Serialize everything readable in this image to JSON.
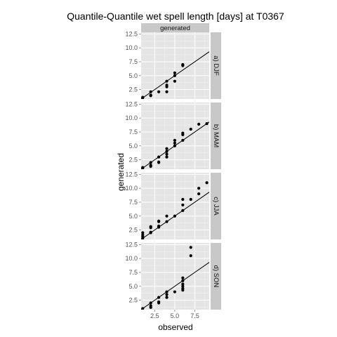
{
  "chart_data": {
    "type": "scatter",
    "title": "Quantile-Quantile wet spell length [days] at T0367",
    "xlabel": "observed",
    "ylabel": "generated",
    "column_strip": "generated",
    "xlim": [
      0.8,
      9.3
    ],
    "ylim": [
      0.8,
      12.8
    ],
    "x_ticks": [
      "2.5",
      "5.0",
      "7.5"
    ],
    "x_tick_values": [
      2.5,
      5.0,
      7.5
    ],
    "y_ticks": [
      "2.5",
      "5.0",
      "7.5",
      "10.0",
      "12.5"
    ],
    "y_tick_values": [
      2.5,
      5.0,
      7.5,
      10.0,
      12.5
    ],
    "reference_line": "y = x",
    "grid": true,
    "panels": [
      {
        "label": "a) DJF",
        "points": [
          [
            1,
            1
          ],
          [
            1,
            1.1
          ],
          [
            2,
            1.5
          ],
          [
            2,
            1.4
          ],
          [
            2,
            2.1
          ],
          [
            3,
            2.1
          ],
          [
            4,
            2.1
          ],
          [
            4,
            3
          ],
          [
            4,
            3.3
          ],
          [
            4,
            4
          ],
          [
            5,
            4
          ],
          [
            5,
            5
          ],
          [
            5,
            5.5
          ],
          [
            6,
            6.8
          ],
          [
            6,
            7
          ]
        ]
      },
      {
        "label": "b) MAM",
        "points": [
          [
            1,
            1
          ],
          [
            1,
            1.1
          ],
          [
            2,
            1.3
          ],
          [
            2,
            1.5
          ],
          [
            2,
            2
          ],
          [
            3,
            2
          ],
          [
            3,
            2.1
          ],
          [
            3,
            3
          ],
          [
            4,
            3
          ],
          [
            4,
            3.5
          ],
          [
            4,
            4
          ],
          [
            4,
            4.5
          ],
          [
            5,
            5
          ],
          [
            5,
            5.5
          ],
          [
            5,
            6
          ],
          [
            6,
            6
          ],
          [
            6,
            7
          ],
          [
            6,
            7.3
          ],
          [
            7,
            8
          ],
          [
            8,
            8.9
          ],
          [
            9,
            9
          ]
        ]
      },
      {
        "label": "c) JJA",
        "points": [
          [
            1,
            1
          ],
          [
            1,
            1.3
          ],
          [
            1,
            1.6
          ],
          [
            1,
            2
          ],
          [
            2,
            2
          ],
          [
            2,
            2.1
          ],
          [
            2,
            2.9
          ],
          [
            2,
            3.1
          ],
          [
            3,
            3
          ],
          [
            3,
            3.2
          ],
          [
            3,
            4
          ],
          [
            3,
            4.1
          ],
          [
            4,
            4
          ],
          [
            4,
            5
          ],
          [
            5,
            5
          ],
          [
            6,
            6
          ],
          [
            6,
            7
          ],
          [
            6,
            8
          ],
          [
            7,
            8
          ],
          [
            8,
            9
          ],
          [
            8,
            10
          ],
          [
            9,
            11
          ]
        ]
      },
      {
        "label": "d) SON",
        "points": [
          [
            1,
            1
          ],
          [
            2,
            1.2
          ],
          [
            2,
            1.5
          ],
          [
            2,
            2
          ],
          [
            3,
            2
          ],
          [
            3,
            2.2
          ],
          [
            3,
            3
          ],
          [
            4,
            3
          ],
          [
            4,
            3.5
          ],
          [
            4,
            4
          ],
          [
            5,
            4
          ],
          [
            6,
            4.3
          ],
          [
            6,
            4.6
          ],
          [
            6,
            5
          ],
          [
            6,
            5.4
          ],
          [
            6,
            6
          ],
          [
            6,
            6.5
          ],
          [
            7,
            10.5
          ],
          [
            7,
            12
          ]
        ]
      }
    ]
  }
}
